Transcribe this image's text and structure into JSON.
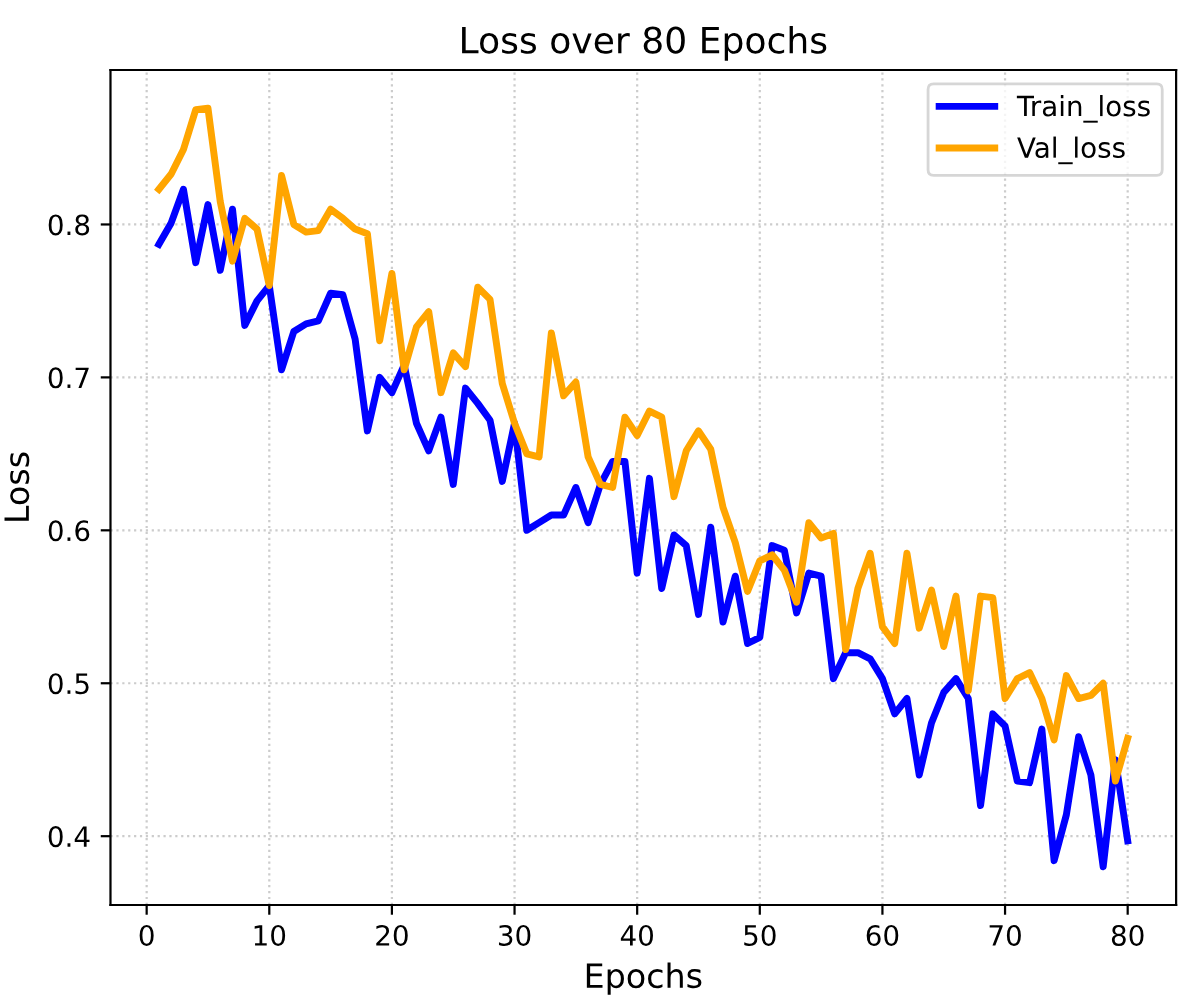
{
  "chart_data": {
    "type": "line",
    "title": "Loss over 80 Epochs",
    "xlabel": "Epochs",
    "ylabel": "Loss",
    "x": [
      1,
      2,
      3,
      4,
      5,
      6,
      7,
      8,
      9,
      10,
      11,
      12,
      13,
      14,
      15,
      16,
      17,
      18,
      19,
      20,
      21,
      22,
      23,
      24,
      25,
      26,
      27,
      28,
      29,
      30,
      31,
      32,
      33,
      34,
      35,
      36,
      37,
      38,
      39,
      40,
      41,
      42,
      43,
      44,
      45,
      46,
      47,
      48,
      49,
      50,
      51,
      52,
      53,
      54,
      55,
      56,
      57,
      58,
      59,
      60,
      61,
      62,
      63,
      64,
      65,
      66,
      67,
      68,
      69,
      70,
      71,
      72,
      73,
      74,
      75,
      76,
      77,
      78,
      79,
      80
    ],
    "series": [
      {
        "name": "Train_loss",
        "color": "#0000ff",
        "values": [
          0.787,
          0.801,
          0.823,
          0.775,
          0.813,
          0.77,
          0.81,
          0.734,
          0.75,
          0.76,
          0.705,
          0.73,
          0.735,
          0.737,
          0.755,
          0.754,
          0.725,
          0.665,
          0.7,
          0.69,
          0.708,
          0.67,
          0.652,
          0.674,
          0.63,
          0.693,
          0.683,
          0.672,
          0.632,
          0.67,
          0.6,
          0.605,
          0.61,
          0.61,
          0.628,
          0.605,
          0.63,
          0.645,
          0.645,
          0.572,
          0.634,
          0.562,
          0.597,
          0.59,
          0.545,
          0.602,
          0.54,
          0.57,
          0.526,
          0.53,
          0.59,
          0.587,
          0.546,
          0.572,
          0.57,
          0.503,
          0.52,
          0.52,
          0.516,
          0.503,
          0.48,
          0.49,
          0.44,
          0.474,
          0.494,
          0.503,
          0.49,
          0.42,
          0.48,
          0.472,
          0.436,
          0.435,
          0.47,
          0.384,
          0.414,
          0.465,
          0.44,
          0.38,
          0.45,
          0.397
        ]
      },
      {
        "name": "Val_loss",
        "color": "#ffa500",
        "values": [
          0.823,
          0.833,
          0.849,
          0.875,
          0.876,
          0.815,
          0.776,
          0.804,
          0.797,
          0.76,
          0.832,
          0.8,
          0.795,
          0.796,
          0.81,
          0.804,
          0.797,
          0.794,
          0.724,
          0.768,
          0.705,
          0.733,
          0.743,
          0.69,
          0.716,
          0.707,
          0.759,
          0.751,
          0.696,
          0.67,
          0.65,
          0.648,
          0.729,
          0.688,
          0.697,
          0.648,
          0.63,
          0.628,
          0.674,
          0.662,
          0.678,
          0.674,
          0.622,
          0.652,
          0.665,
          0.653,
          0.615,
          0.592,
          0.56,
          0.58,
          0.584,
          0.574,
          0.553,
          0.605,
          0.595,
          0.598,
          0.522,
          0.562,
          0.585,
          0.537,
          0.526,
          0.585,
          0.536,
          0.561,
          0.524,
          0.557,
          0.495,
          0.557,
          0.556,
          0.49,
          0.503,
          0.507,
          0.49,
          0.463,
          0.505,
          0.49,
          0.492,
          0.5,
          0.436,
          0.464
        ]
      }
    ],
    "xlim": [
      -2.95,
      83.95
    ],
    "xticks": [
      0,
      10,
      20,
      30,
      40,
      50,
      60,
      70,
      80
    ],
    "ylim": [
      0.355,
      0.901
    ],
    "yticks": [
      0.4,
      0.5,
      0.6,
      0.7,
      0.8
    ],
    "grid": true,
    "legend": "top right",
    "line_style": "solid",
    "marker": "none"
  }
}
